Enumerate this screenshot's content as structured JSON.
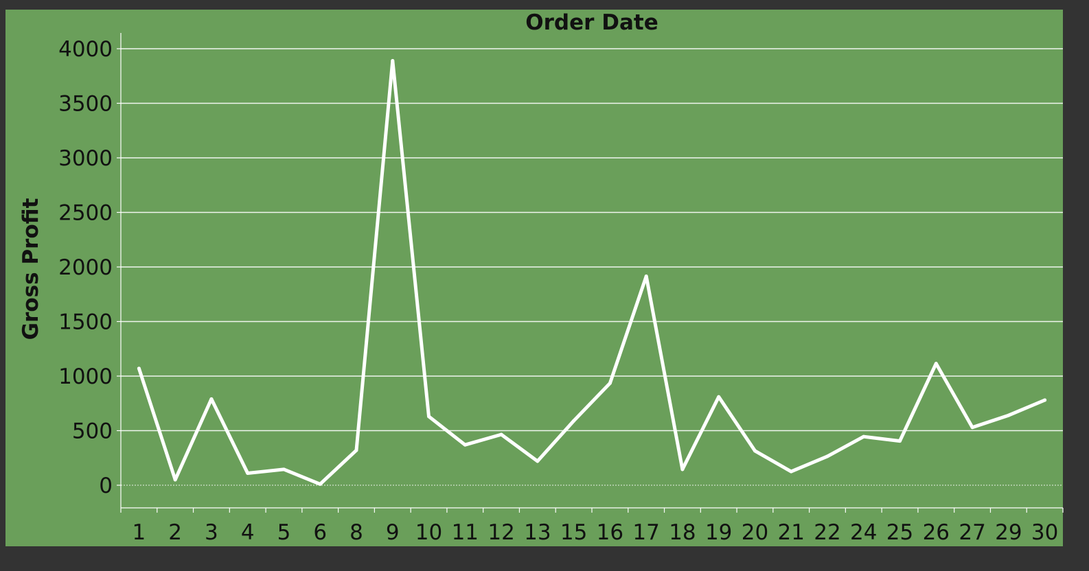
{
  "chart_data": {
    "type": "line",
    "title": "Order Date",
    "xlabel": "",
    "ylabel": "Gross Profit",
    "categories": [
      "1",
      "2",
      "3",
      "4",
      "5",
      "6",
      "8",
      "9",
      "10",
      "11",
      "12",
      "13",
      "15",
      "16",
      "17",
      "18",
      "19",
      "20",
      "21",
      "22",
      "24",
      "25",
      "26",
      "27",
      "29",
      "30"
    ],
    "series": [
      {
        "values": [
          1070,
          50,
          790,
          110,
          145,
          10,
          320,
          3890,
          630,
          370,
          465,
          220,
          590,
          935,
          1915,
          145,
          810,
          315,
          125,
          265,
          445,
          405,
          1115,
          530,
          640,
          780
        ]
      }
    ],
    "ylim": [
      -200,
      4150
    ],
    "yticks": [
      0,
      500,
      1000,
      1500,
      2000,
      2500,
      3000,
      3500,
      4000
    ],
    "ytick_labels": [
      "0",
      "500",
      "1000",
      "1500",
      "2000",
      "2500",
      "3000",
      "3500",
      "4000"
    ],
    "grid": true,
    "legend": "none",
    "colors": {
      "frame": "#333333",
      "background": "#6a9f5a",
      "line": "#ffffff",
      "gridline": "#ffffff",
      "text": "#111111"
    }
  }
}
